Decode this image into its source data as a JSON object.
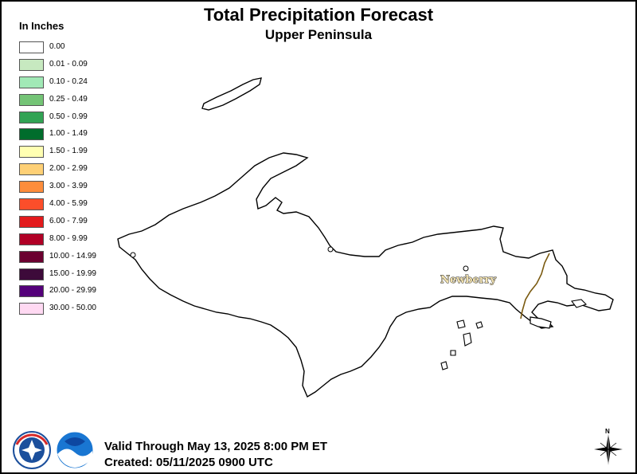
{
  "header": {
    "title": "Total Precipitation Forecast",
    "subtitle": "Upper Peninsula"
  },
  "legend": {
    "title": "In Inches",
    "items": [
      {
        "label": "0.00",
        "color": "#ffffff"
      },
      {
        "label": "0.01 - 0.09",
        "color": "#c7e9c0"
      },
      {
        "label": "0.10 - 0.24",
        "color": "#a1e9b6"
      },
      {
        "label": "0.25 - 0.49",
        "color": "#74c476"
      },
      {
        "label": "0.50 - 0.99",
        "color": "#31a354"
      },
      {
        "label": "1.00 - 1.49",
        "color": "#006d2c"
      },
      {
        "label": "1.50 - 1.99",
        "color": "#ffffb2"
      },
      {
        "label": "2.00 - 2.99",
        "color": "#fed076"
      },
      {
        "label": "3.00 - 3.99",
        "color": "#fd8d3c"
      },
      {
        "label": "4.00 - 5.99",
        "color": "#fc4e2a"
      },
      {
        "label": "6.00 - 7.99",
        "color": "#e31a1c"
      },
      {
        "label": "8.00 - 9.99",
        "color": "#b10026"
      },
      {
        "label": "10.00 - 14.99",
        "color": "#6b0030"
      },
      {
        "label": "15.00 - 19.99",
        "color": "#3d0a3a"
      },
      {
        "label": "20.00 - 29.99",
        "color": "#54007a"
      },
      {
        "label": "30.00 - 50.00",
        "color": "#ffd9f2"
      }
    ]
  },
  "map": {
    "city": "Newberry"
  },
  "footer": {
    "valid": "Valid Through May 13, 2025 8:00 PM ET",
    "created": "Created: 05/11/2025 0900 UTC"
  },
  "compass": {
    "label": "N"
  },
  "logos": {
    "nws": "nws-logo",
    "noaa": "noaa-logo"
  },
  "colors": {
    "outline": "#000000",
    "county_line": "#7a5a10",
    "nws_blue": "#1b4f9c",
    "nws_red": "#d62a2a",
    "noaa_blue": "#1976d2"
  }
}
